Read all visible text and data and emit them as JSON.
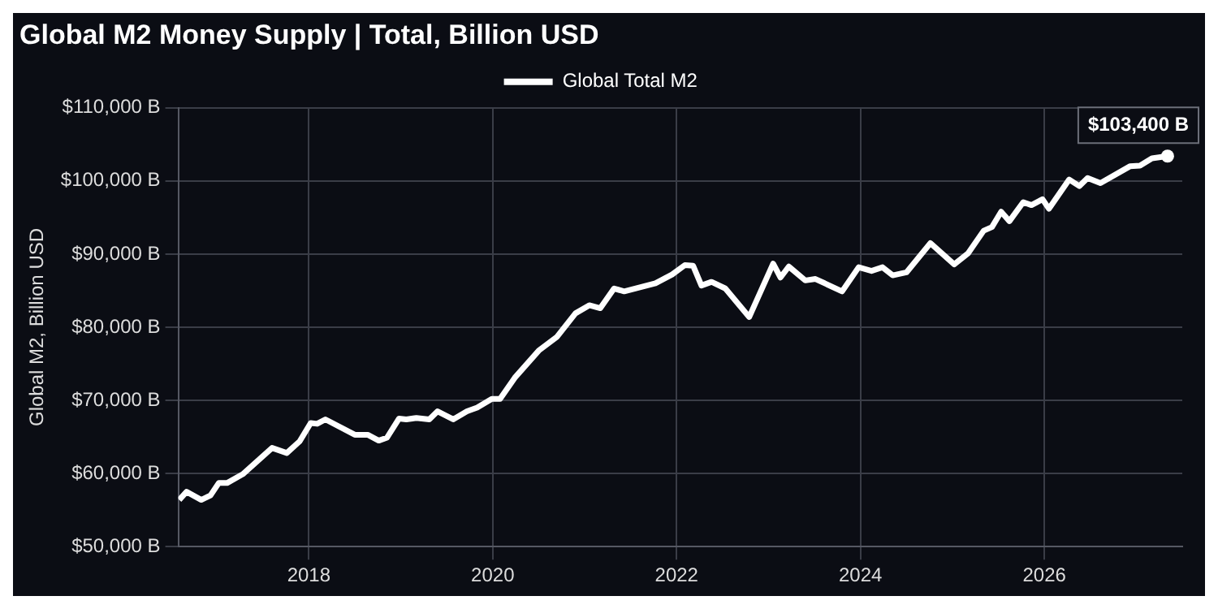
{
  "chart_data": {
    "type": "line",
    "title": "Global M2 Money Supply | Total, Billion USD",
    "ylabel": "Global M2, Billion USD",
    "x": [
      2016.59,
      2016.67,
      2016.83,
      2016.93,
      2017.02,
      2017.11,
      2017.28,
      2017.6,
      2017.76,
      2017.9,
      2018.02,
      2018.09,
      2018.18,
      2018.5,
      2018.64,
      2018.76,
      2018.85,
      2018.98,
      2019.06,
      2019.17,
      2019.31,
      2019.4,
      2019.57,
      2019.72,
      2019.83,
      2019.99,
      2020.08,
      2020.24,
      2020.5,
      2020.7,
      2020.9,
      2021.05,
      2021.17,
      2021.32,
      2021.43,
      2021.77,
      2021.95,
      2022.09,
      2022.18,
      2022.27,
      2022.38,
      2022.53,
      2022.79,
      2023.05,
      2023.13,
      2023.22,
      2023.4,
      2023.51,
      2023.8,
      2023.98,
      2024.12,
      2024.24,
      2024.35,
      2024.5,
      2024.76,
      2025.02,
      2025.17,
      2025.34,
      2025.43,
      2025.53,
      2025.62,
      2025.77,
      2025.86,
      2025.98,
      2026.05,
      2026.27,
      2026.38,
      2026.47,
      2026.61,
      2026.93,
      2027.04,
      2027.17,
      2027.34
    ],
    "series": [
      {
        "name": "Global Total M2",
        "color": "#ffffff",
        "values": [
          56400,
          57500,
          56400,
          57000,
          58700,
          58700,
          59900,
          63500,
          62800,
          64400,
          66900,
          66800,
          67400,
          65300,
          65300,
          64500,
          64900,
          67500,
          67400,
          67600,
          67400,
          68500,
          67400,
          68500,
          69000,
          70200,
          70200,
          73100,
          76800,
          78700,
          81900,
          83000,
          82600,
          85300,
          84900,
          86000,
          87200,
          88500,
          88400,
          85700,
          86200,
          85300,
          81400,
          88700,
          86800,
          88300,
          86400,
          86600,
          84900,
          88200,
          87700,
          88200,
          87100,
          87500,
          91500,
          88600,
          90100,
          93200,
          93700,
          95800,
          94500,
          97100,
          96700,
          97500,
          96200,
          100200,
          99300,
          100400,
          99700,
          102000,
          102100,
          103100,
          103400
        ]
      }
    ],
    "xlim": [
      2016.58,
      2027.5
    ],
    "xticks": [
      2018,
      2020,
      2022,
      2024,
      2026
    ],
    "ylim": [
      50000,
      110000
    ],
    "yticks": [
      {
        "value": 50000,
        "label": "$50,000 B"
      },
      {
        "value": 60000,
        "label": "$60,000 B"
      },
      {
        "value": 70000,
        "label": "$70,000 B"
      },
      {
        "value": 80000,
        "label": "$80,000 B"
      },
      {
        "value": 90000,
        "label": "$90,000 B"
      },
      {
        "value": 100000,
        "label": "$100,000 B"
      },
      {
        "value": 110000,
        "label": "$110,000 B"
      }
    ],
    "grid": true,
    "legend": "top",
    "line_style": "solid",
    "annotations": [
      {
        "text": "$103,400 B",
        "x": 2027.34,
        "y": 103400
      }
    ]
  }
}
